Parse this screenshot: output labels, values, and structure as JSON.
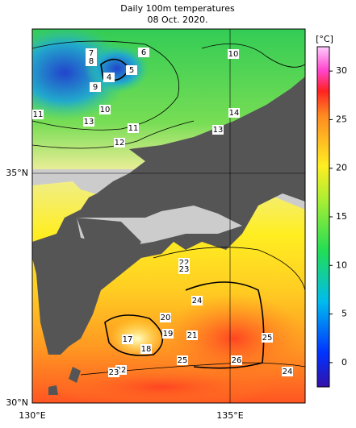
{
  "title": "Daily 100m temperatures",
  "date": "08 Oct. 2020.",
  "lat_labels": [
    "35°N",
    "30°N"
  ],
  "lon_labels": [
    "130°E",
    "135°E"
  ],
  "colorbar": {
    "unit": "[°C]",
    "lim": [
      -2.5,
      32.5
    ],
    "ticks": [
      0,
      5,
      10,
      15,
      20,
      25,
      30
    ]
  },
  "contour_labels": [
    "7",
    "8",
    "6",
    "5",
    "4",
    "9",
    "10",
    "11",
    "13",
    "11",
    "12",
    "10",
    "14",
    "13",
    "22",
    "23",
    "24",
    "20",
    "19",
    "21",
    "17",
    "18",
    "25",
    "26",
    "25",
    "24",
    "22",
    "23"
  ]
}
